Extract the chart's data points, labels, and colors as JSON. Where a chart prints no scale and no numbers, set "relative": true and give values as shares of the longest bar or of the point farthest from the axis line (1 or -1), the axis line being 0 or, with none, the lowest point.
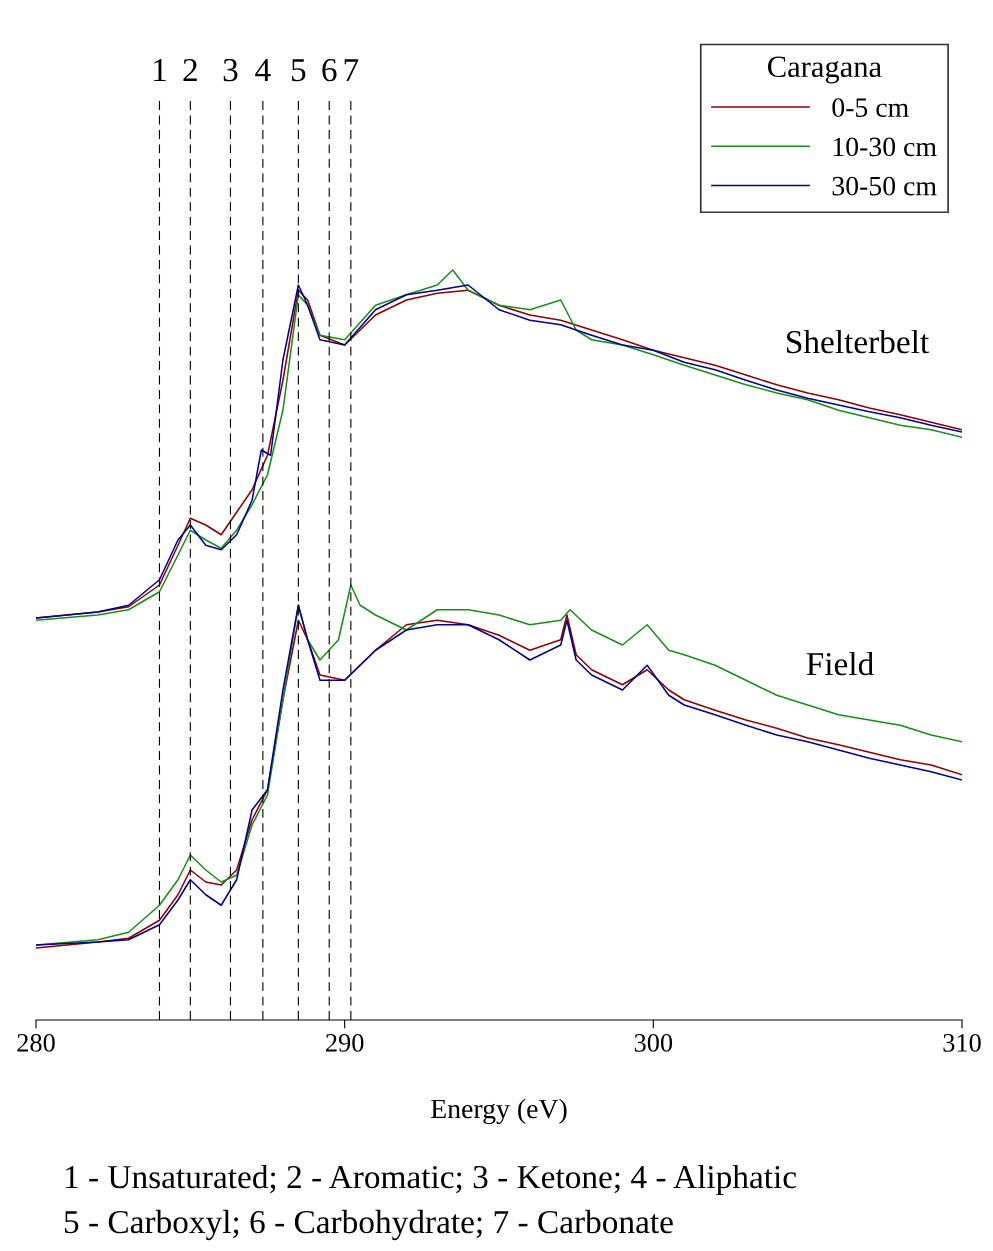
{
  "chart_data": {
    "type": "line",
    "relative": true,
    "xlabel": "Energy (eV)",
    "xlim": [
      280,
      310
    ],
    "xticks": [
      280,
      290,
      300,
      310
    ],
    "tick_labels": "x",
    "legend": "top right",
    "legend_title": "Caragana",
    "grid": false,
    "marker": "none",
    "line_style": "solid",
    "series": [
      {
        "name": "0-5 cm",
        "color": "#8b0000",
        "x": [
          280,
          282,
          283,
          284,
          284.6,
          285,
          285.5,
          286,
          286.5,
          287,
          287.5,
          288,
          288.5,
          288.8,
          289.2,
          290,
          291,
          292,
          293,
          294,
          295,
          296,
          297,
          298,
          299,
          300,
          301,
          302,
          303,
          304,
          305,
          306,
          307,
          308,
          309,
          310
        ],
        "values": [
          0.536,
          0.544,
          0.551,
          0.58,
          0.633,
          0.669,
          0.66,
          0.647,
          0.677,
          0.707,
          0.753,
          0.853,
          0.973,
          0.96,
          0.913,
          0.9,
          0.94,
          0.96,
          0.969,
          0.973,
          0.953,
          0.94,
          0.933,
          0.92,
          0.907,
          0.893,
          0.883,
          0.873,
          0.86,
          0.847,
          0.836,
          0.827,
          0.816,
          0.807,
          0.797,
          0.787
        ]
      },
      {
        "name": "10-30 cm",
        "color": "#1a8c1a",
        "x": [
          280,
          282,
          283,
          284,
          284.6,
          285,
          285.5,
          286,
          286.5,
          287,
          287.5,
          288,
          288.5,
          288.8,
          289.2,
          290,
          291,
          292,
          293,
          293.5,
          294,
          295,
          296,
          297,
          297.5,
          298,
          299,
          300,
          301,
          302,
          303,
          304,
          305,
          306,
          307,
          308,
          309,
          310
        ],
        "values": [
          0.533,
          0.54,
          0.547,
          0.571,
          0.62,
          0.653,
          0.64,
          0.629,
          0.653,
          0.687,
          0.727,
          0.813,
          0.967,
          0.953,
          0.913,
          0.907,
          0.953,
          0.967,
          0.98,
          1.0,
          0.973,
          0.953,
          0.947,
          0.96,
          0.92,
          0.907,
          0.9,
          0.887,
          0.873,
          0.86,
          0.847,
          0.836,
          0.827,
          0.813,
          0.803,
          0.793,
          0.787,
          0.777
        ]
      },
      {
        "name": "30-50 cm",
        "color": "#00008b",
        "x": [
          280,
          282,
          283,
          284,
          284.6,
          285,
          285.5,
          286,
          286.5,
          287,
          287.3,
          287.6,
          288,
          288.5,
          288.8,
          289.2,
          290,
          291,
          292,
          293,
          294,
          295,
          296,
          297,
          298,
          299,
          300,
          301,
          302,
          303,
          304,
          305,
          306,
          307,
          308,
          309,
          310
        ],
        "values": [
          0.536,
          0.544,
          0.553,
          0.587,
          0.64,
          0.66,
          0.633,
          0.627,
          0.647,
          0.693,
          0.76,
          0.753,
          0.88,
          0.98,
          0.953,
          0.907,
          0.9,
          0.947,
          0.967,
          0.973,
          0.98,
          0.947,
          0.933,
          0.927,
          0.913,
          0.9,
          0.893,
          0.877,
          0.867,
          0.853,
          0.84,
          0.829,
          0.82,
          0.811,
          0.803,
          0.793,
          0.784
        ]
      },
      {
        "color": "#8b0000",
        "x": [
          280,
          282,
          283,
          284,
          284.6,
          285,
          285.5,
          286,
          286.5,
          287,
          287.5,
          288,
          288.5,
          288.8,
          289.2,
          290,
          291,
          292,
          293,
          294,
          295,
          296,
          297,
          297.2,
          297.5,
          298,
          299,
          299.8,
          300.5,
          301,
          302,
          303,
          304,
          305,
          306,
          307,
          308,
          309,
          310
        ],
        "values": [
          0.096,
          0.104,
          0.109,
          0.133,
          0.167,
          0.2,
          0.184,
          0.18,
          0.2,
          0.267,
          0.307,
          0.427,
          0.533,
          0.507,
          0.46,
          0.453,
          0.493,
          0.527,
          0.533,
          0.527,
          0.513,
          0.493,
          0.507,
          0.54,
          0.487,
          0.467,
          0.447,
          0.467,
          0.44,
          0.427,
          0.413,
          0.4,
          0.389,
          0.376,
          0.367,
          0.357,
          0.347,
          0.34,
          0.327
        ]
      },
      {
        "color": "#1a8c1a",
        "x": [
          280,
          282,
          283,
          284,
          284.6,
          285,
          285.5,
          286,
          286.5,
          287,
          287.5,
          288,
          288.5,
          288.8,
          289.2,
          289.8,
          290.2,
          290.5,
          291,
          292,
          293,
          294,
          295,
          296,
          297,
          297.3,
          298,
          299,
          299.8,
          300.5,
          301,
          302,
          303,
          304,
          305,
          306,
          307,
          308,
          309,
          310
        ],
        "values": [
          0.1,
          0.107,
          0.117,
          0.153,
          0.187,
          0.22,
          0.2,
          0.184,
          0.193,
          0.26,
          0.3,
          0.427,
          0.553,
          0.507,
          0.48,
          0.507,
          0.58,
          0.553,
          0.54,
          0.52,
          0.547,
          0.547,
          0.54,
          0.527,
          0.533,
          0.547,
          0.52,
          0.5,
          0.527,
          0.493,
          0.487,
          0.473,
          0.453,
          0.433,
          0.42,
          0.407,
          0.4,
          0.393,
          0.38,
          0.371
        ]
      },
      {
        "color": "#00008b",
        "x": [
          280,
          282,
          283,
          284,
          284.6,
          285,
          285.5,
          286,
          286.5,
          287,
          287.5,
          288,
          288.5,
          288.8,
          289.2,
          290,
          291,
          292,
          293,
          294,
          295,
          296,
          297,
          297.2,
          297.5,
          298,
          299,
          299.8,
          300.5,
          301,
          302,
          303,
          304,
          305,
          306,
          307,
          308,
          309,
          310
        ],
        "values": [
          0.1,
          0.104,
          0.107,
          0.127,
          0.16,
          0.187,
          0.167,
          0.153,
          0.187,
          0.28,
          0.307,
          0.44,
          0.553,
          0.507,
          0.453,
          0.453,
          0.493,
          0.52,
          0.527,
          0.527,
          0.507,
          0.48,
          0.5,
          0.533,
          0.48,
          0.46,
          0.44,
          0.473,
          0.433,
          0.42,
          0.407,
          0.393,
          0.38,
          0.371,
          0.36,
          0.349,
          0.34,
          0.331,
          0.32
        ]
      }
    ],
    "ref_lines": [
      {
        "axis": "x",
        "value": 284.0,
        "line_style": "dashed"
      },
      {
        "axis": "x",
        "value": 285.0,
        "line_style": "dashed"
      },
      {
        "axis": "x",
        "value": 286.3,
        "line_style": "dashed"
      },
      {
        "axis": "x",
        "value": 287.35,
        "line_style": "dashed"
      },
      {
        "axis": "x",
        "value": 288.5,
        "line_style": "dashed"
      },
      {
        "axis": "x",
        "value": 289.5,
        "line_style": "dashed"
      },
      {
        "axis": "x",
        "value": 290.2,
        "line_style": "dashed"
      }
    ],
    "annotations": [
      "1",
      "2",
      "3",
      "4",
      "5",
      "6",
      "7",
      "Shelterbelt",
      "Field",
      "1 - Unsaturated; 2 - Aromatic; 3 - Ketone; 4 - Aliphatic",
      "5 - Carboxyl; 6 - Carbohydrate; 7 - Carbonate"
    ]
  }
}
